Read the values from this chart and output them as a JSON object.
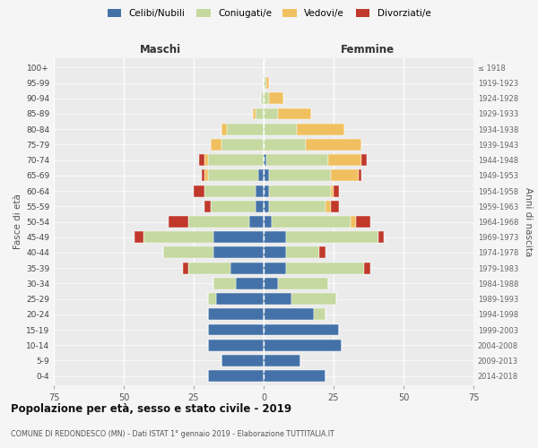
{
  "age_groups": [
    "0-4",
    "5-9",
    "10-14",
    "15-19",
    "20-24",
    "25-29",
    "30-34",
    "35-39",
    "40-44",
    "45-49",
    "50-54",
    "55-59",
    "60-64",
    "65-69",
    "70-74",
    "75-79",
    "80-84",
    "85-89",
    "90-94",
    "95-99",
    "100+"
  ],
  "birth_years": [
    "2014-2018",
    "2009-2013",
    "2004-2008",
    "1999-2003",
    "1994-1998",
    "1989-1993",
    "1984-1988",
    "1979-1983",
    "1974-1978",
    "1969-1973",
    "1964-1968",
    "1959-1963",
    "1954-1958",
    "1949-1953",
    "1944-1948",
    "1939-1943",
    "1934-1938",
    "1929-1933",
    "1924-1928",
    "1919-1923",
    "≤ 1918"
  ],
  "male": {
    "celibi": [
      20,
      15,
      20,
      20,
      20,
      17,
      10,
      12,
      18,
      18,
      5,
      3,
      3,
      2,
      0,
      0,
      0,
      0,
      0,
      0,
      0
    ],
    "coniugati": [
      0,
      0,
      0,
      0,
      0,
      3,
      8,
      15,
      18,
      25,
      22,
      16,
      18,
      18,
      20,
      15,
      13,
      3,
      1,
      0,
      0
    ],
    "vedovi": [
      0,
      0,
      0,
      0,
      0,
      0,
      0,
      0,
      0,
      0,
      0,
      0,
      0,
      1,
      1,
      4,
      2,
      1,
      0,
      0,
      0
    ],
    "divorziati": [
      0,
      0,
      0,
      0,
      0,
      0,
      0,
      2,
      0,
      3,
      7,
      2,
      4,
      1,
      2,
      0,
      0,
      0,
      0,
      0,
      0
    ]
  },
  "female": {
    "nubili": [
      22,
      13,
      28,
      27,
      18,
      10,
      5,
      8,
      8,
      8,
      3,
      2,
      2,
      2,
      1,
      0,
      0,
      0,
      0,
      0,
      0
    ],
    "coniugate": [
      0,
      0,
      0,
      0,
      4,
      16,
      18,
      28,
      12,
      33,
      28,
      20,
      22,
      22,
      22,
      15,
      12,
      5,
      2,
      1,
      0
    ],
    "vedove": [
      0,
      0,
      0,
      0,
      0,
      0,
      0,
      0,
      0,
      0,
      2,
      2,
      1,
      10,
      12,
      20,
      17,
      12,
      5,
      1,
      0
    ],
    "divorziate": [
      0,
      0,
      0,
      0,
      0,
      0,
      0,
      2,
      2,
      2,
      5,
      3,
      2,
      1,
      2,
      0,
      0,
      0,
      0,
      0,
      0
    ]
  },
  "colors": {
    "celibi": "#4472a8",
    "coniugati": "#c5d9a0",
    "vedovi": "#f0c060",
    "divorziati": "#c0392b"
  },
  "xlim": 75,
  "title": "Popolazione per età, sesso e stato civile - 2019",
  "subtitle": "COMUNE DI REDONDESCO (MN) - Dati ISTAT 1° gennaio 2019 - Elaborazione TUTTITALIA.IT",
  "ylabel": "Fasce di età",
  "ylabel_right": "Anni di nascita",
  "xlabel_maschi": "Maschi",
  "xlabel_femmine": "Femmine",
  "legend_labels": [
    "Celibi/Nubili",
    "Coniugati/e",
    "Vedovi/e",
    "Divorziati/e"
  ],
  "bg_color": "#f5f5f5",
  "plot_bg_color": "#ebebeb"
}
